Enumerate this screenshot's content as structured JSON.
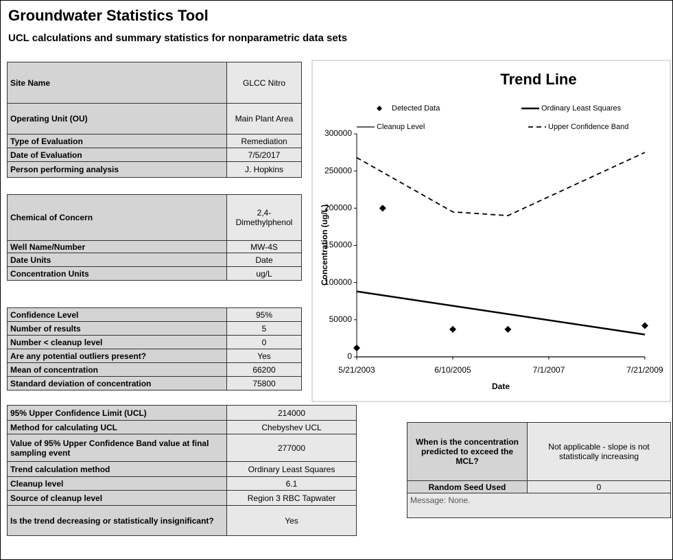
{
  "header": {
    "title": "Groundwater Statistics Tool",
    "subtitle": "UCL calculations and summary statistics for nonparametric data sets"
  },
  "site_table": {
    "rows": [
      [
        "Site Name",
        "GLCC Nitro"
      ],
      [
        "Operating Unit (OU)",
        "Main Plant Area"
      ],
      [
        "Type of Evaluation",
        "Remediation"
      ],
      [
        "Date of Evaluation",
        "7/5/2017"
      ],
      [
        "Person performing analysis",
        "J. Hopkins"
      ]
    ]
  },
  "chemical_table": {
    "rows": [
      [
        "Chemical of Concern",
        "2,4-Dimethylphenol"
      ],
      [
        "Well Name/Number",
        "MW-4S"
      ],
      [
        "Date Units",
        "Date"
      ],
      [
        "Concentration Units",
        "ug/L"
      ]
    ]
  },
  "stats_table": {
    "rows": [
      [
        "Confidence Level",
        "95%"
      ],
      [
        "Number of results",
        "5"
      ],
      [
        "Number < cleanup level",
        "0"
      ],
      [
        "Are any potential outliers present?",
        "Yes"
      ],
      [
        "Mean of concentration",
        "66200"
      ],
      [
        "Standard deviation of concentration",
        "75800"
      ]
    ]
  },
  "ucl_table": {
    "rows": [
      [
        "95% Upper Confidence Limit (UCL)",
        "214000"
      ],
      [
        "Method for calculating UCL",
        "Chebyshev UCL"
      ],
      [
        "Value of 95% Upper Confidence Band value at final sampling event",
        "277000"
      ],
      [
        "Trend calculation method",
        "Ordinary Least Squares"
      ],
      [
        "Cleanup level",
        "6.1"
      ],
      [
        "Source of cleanup level",
        "Region 3 RBC Tapwater"
      ],
      [
        "Is the trend decreasing or statistically insignificant?",
        "Yes"
      ]
    ]
  },
  "mcl_table": {
    "rows": [
      [
        "When is the concentration predicted to exceed the MCL?",
        "Not applicable - slope is not statistically increasing"
      ],
      [
        "Random Seed Used",
        "0"
      ]
    ],
    "message": "Message: None."
  },
  "chart_data": {
    "type": "line",
    "title": "Trend Line",
    "x_label": "Date",
    "y_label": "Concentration (ug/L)",
    "series": [
      {
        "name": "Detected Data",
        "color": "#000000",
        "mode": "markers",
        "x": [
          "5/21/2003",
          "12/10/2003",
          "6/10/2005",
          "8/15/2006",
          "7/21/2009"
        ],
        "values": [
          12000,
          200000,
          37000,
          37000,
          42000
        ]
      },
      {
        "name": "Ordinary Least Squares",
        "color": "#000000",
        "mode": "line",
        "x": [
          "5/21/2003",
          "7/21/2009"
        ],
        "values": [
          88000,
          30000
        ]
      },
      {
        "name": "Cleanup Level",
        "color": "#000000",
        "mode": "line",
        "x": [
          "5/21/2003",
          "7/21/2009"
        ],
        "values": [
          6.1,
          6.1
        ]
      },
      {
        "name": "Upper Confidence Band",
        "color": "#000000",
        "mode": "line",
        "dash": true,
        "x": [
          "5/21/2003",
          "6/10/2005",
          "8/15/2006",
          "7/21/2009"
        ],
        "values": [
          268000,
          195000,
          190000,
          275000
        ]
      }
    ],
    "xlim": [
      "5/21/2003",
      "7/21/2009"
    ],
    "xticks": [
      "5/21/2003",
      "6/10/2005",
      "7/1/2007",
      "7/21/2009"
    ],
    "ylim": [
      0,
      300000
    ],
    "yticks": [
      0,
      50000,
      100000,
      150000,
      200000,
      250000,
      300000
    ]
  }
}
